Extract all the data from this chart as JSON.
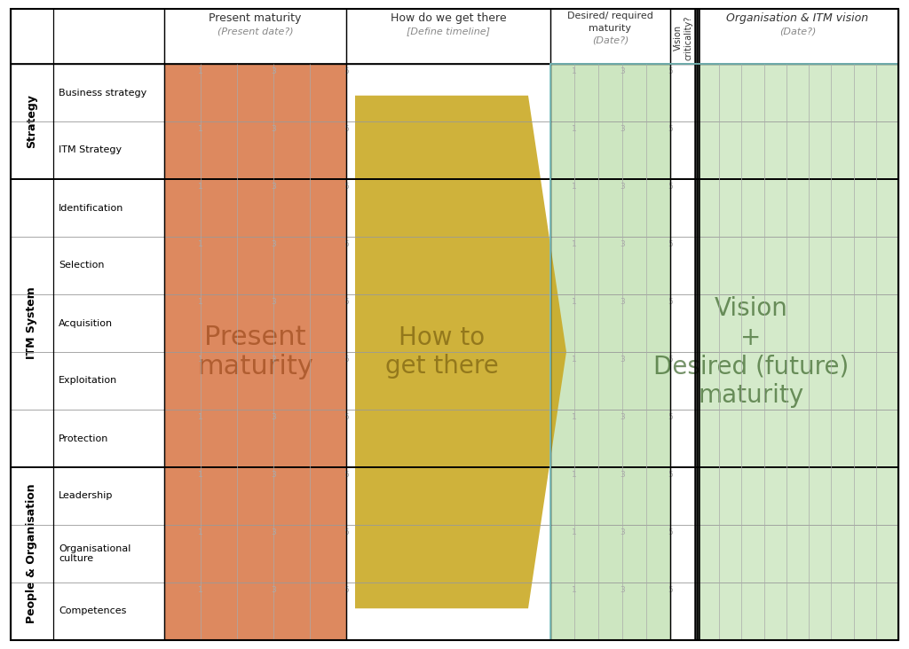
{
  "row_groups": [
    {
      "label": "Strategy",
      "rows": [
        "Business strategy",
        "ITM Strategy"
      ]
    },
    {
      "label": "ITM System",
      "rows": [
        "Identification",
        "Selection",
        "Acquisition",
        "Exploitation",
        "Protection"
      ]
    },
    {
      "label": "People & Organisation",
      "rows": [
        "Leadership",
        "Organisational\nculture",
        "Competences"
      ]
    }
  ],
  "present_maturity_color": "#D2622A",
  "present_maturity_alpha": 0.75,
  "how_to_color": "#C9A820",
  "how_to_alpha": 0.88,
  "desired_maturity_color": "#B2D9A0",
  "desired_maturity_alpha": 0.65,
  "vision_color": "#B2D9A0",
  "vision_alpha": 0.55,
  "background_color": "#ffffff",
  "pm_label_color": "#8B3A0A",
  "htgt_label_color": "#7A6010",
  "vision_label_color": "#2D5A1B",
  "col_header_present_maturity": "Present maturity",
  "col_header_present_date": "(Present date?)",
  "col_header_how": "How do we get there",
  "col_header_how_sub": "[Define timeline]",
  "col_header_desired": "Desired/ required\nmaturity",
  "col_header_desired_date": "(Date?)",
  "col_header_vision_crit": "Vision\ncriticality?",
  "col_header_org": "Organisation & ITM vision",
  "col_header_org_date": "(Date?)",
  "large_text_pm": "Present\nmaturity",
  "large_text_htgt": "How to\nget there",
  "large_text_vision": "Vision\n+\nDesired (future)\nmaturity"
}
